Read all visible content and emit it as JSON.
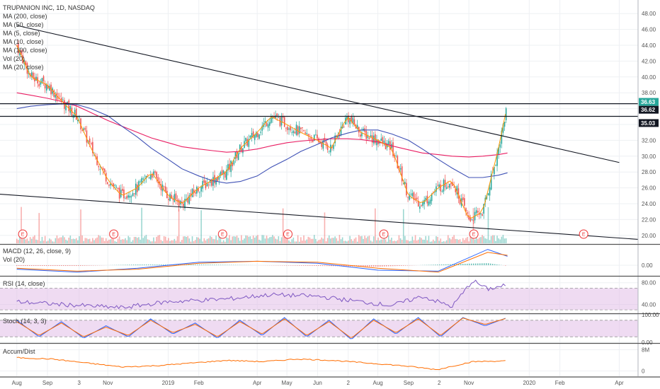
{
  "chart_data": [
    {
      "type": "line",
      "title": "TRUPANION INC, 1D, NASDAQ",
      "pane": "price",
      "ylim": [
        19,
        49
      ],
      "yticks": [
        48,
        46,
        44,
        42,
        40,
        38,
        36,
        34,
        32,
        30,
        28,
        26,
        24,
        22,
        20
      ],
      "legend": [
        "MA (200, close)",
        "MA (50, close)",
        "MA (5, close)",
        "MA (10, close)",
        "MA (100, close)",
        "Vol (20)",
        "MA (20, close)"
      ],
      "x": [
        "2018-08-01",
        "2018-08-15",
        "2018-09-01",
        "2018-09-15",
        "2018-10-01",
        "2018-10-15",
        "2018-11-01",
        "2018-11-15",
        "2018-12-01",
        "2018-12-15",
        "2019-01-01",
        "2019-01-15",
        "2019-02-01",
        "2019-02-15",
        "2019-03-01",
        "2019-03-15",
        "2019-04-01",
        "2019-04-15",
        "2019-05-01",
        "2019-05-15",
        "2019-06-01",
        "2019-06-15",
        "2019-07-01",
        "2019-07-15",
        "2019-08-01",
        "2019-08-15",
        "2019-09-01",
        "2019-09-15",
        "2019-10-01",
        "2019-10-15",
        "2019-11-01",
        "2019-11-15",
        "2019-12-01",
        "2019-12-10"
      ],
      "series": [
        {
          "name": "close",
          "color": "#26a69a",
          "values": [
            44,
            40,
            39,
            37,
            35,
            31,
            27,
            25,
            26,
            28,
            25,
            24,
            26,
            27,
            28,
            31,
            33,
            35,
            34,
            33,
            32,
            31,
            35,
            33,
            32,
            31,
            25,
            24,
            26,
            27,
            22,
            23,
            31,
            36.6
          ]
        },
        {
          "name": "MA (200, close)",
          "color": "#e91e63",
          "values": [
            38,
            37.7,
            37.3,
            36.9,
            36.3,
            35.5,
            34.5,
            33.8,
            33.0,
            32.3,
            31.7,
            31.2,
            30.9,
            30.7,
            30.5,
            30.6,
            30.9,
            31.3,
            31.7,
            31.9,
            32.1,
            32.2,
            32.2,
            32.1,
            31.8,
            31.3,
            30.8,
            30.4,
            30.2,
            30.0,
            29.9,
            30.0,
            30.2,
            30.4
          ]
        },
        {
          "name": "MA (100, close)",
          "color": "#3f51b5",
          "values": [
            36,
            36.3,
            36.5,
            36.6,
            36.5,
            36.0,
            35.1,
            33.8,
            32.4,
            31.0,
            29.6,
            28.4,
            27.5,
            26.9,
            26.6,
            26.8,
            27.5,
            28.6,
            29.6,
            30.6,
            31.5,
            32.3,
            32.9,
            33.3,
            33.3,
            32.8,
            32.0,
            30.9,
            29.6,
            28.5,
            27.3,
            27.3,
            27.6,
            27.9
          ]
        }
      ],
      "horizontal_levels": [
        36.63,
        36.62,
        35.03
      ],
      "tags": [
        {
          "label": "36.63",
          "color": "#26a69a"
        },
        {
          "label": "36.62",
          "color": "#131722"
        },
        {
          "label": "35.03",
          "color": "#131722"
        }
      ],
      "trendlines": [
        {
          "from": [
            "2018-08-01",
            46.5
          ],
          "to": [
            "2020-04-01",
            29.2
          ]
        },
        {
          "from": [
            "2018-07-15",
            25.2
          ],
          "to": [
            "2020-04-20",
            19.5
          ]
        }
      ],
      "events": [
        {
          "x": "2018-08-07",
          "label": "E"
        },
        {
          "x": "2018-11-07",
          "label": "E"
        },
        {
          "x": "2019-02-25",
          "label": "E"
        },
        {
          "x": "2019-05-02",
          "label": "E"
        },
        {
          "x": "2019-08-07",
          "label": "E"
        },
        {
          "x": "2019-11-06",
          "label": "E"
        },
        {
          "x": "2020-02-25",
          "label": "E"
        }
      ]
    },
    {
      "type": "line",
      "pane": "macd",
      "title": "MACD (12, 26, close, 9)",
      "legend_extra": "Vol (20)",
      "ylim": [
        -1,
        2
      ],
      "yticks": [
        0.0
      ],
      "ytick_labels": [
        "0.00"
      ],
      "x": [
        "2018-08-01",
        "2018-10-01",
        "2018-12-01",
        "2019-02-01",
        "2019-04-01",
        "2019-06-01",
        "2019-08-01",
        "2019-10-01",
        "2019-11-20",
        "2019-12-10"
      ],
      "series": [
        {
          "name": "MACD",
          "color": "#2962ff",
          "values": [
            -0.4,
            -0.7,
            -0.3,
            0.3,
            0.4,
            0.2,
            -0.5,
            -0.6,
            1.6,
            0.9
          ]
        },
        {
          "name": "Signal",
          "color": "#ff6d00",
          "values": [
            -0.3,
            -0.6,
            -0.4,
            0.2,
            0.4,
            0.3,
            -0.3,
            -0.7,
            1.3,
            1.0
          ]
        }
      ]
    },
    {
      "type": "line",
      "pane": "rsi",
      "title": "RSI (14, close)",
      "ylim": [
        25,
        90
      ],
      "yticks": [
        80.0,
        40.0
      ],
      "ytick_labels": [
        "80.00",
        "40.00"
      ],
      "band": [
        30,
        70
      ],
      "x": [
        "2018-08-01",
        "2018-09-15",
        "2018-11-15",
        "2019-01-01",
        "2019-03-01",
        "2019-04-15",
        "2019-06-01",
        "2019-08-15",
        "2019-09-15",
        "2019-10-15",
        "2019-11-05",
        "2019-11-20",
        "2019-12-10"
      ],
      "series": [
        {
          "name": "RSI",
          "color": "#7e57c2",
          "values": [
            45,
            40,
            34,
            45,
            50,
            58,
            55,
            38,
            55,
            36,
            84,
            68,
            76
          ]
        }
      ]
    },
    {
      "type": "line",
      "pane": "stoch",
      "title": "Stoch (14, 3, 3)",
      "ylim": [
        0,
        100
      ],
      "yticks": [
        100.0,
        0.0
      ],
      "ytick_labels": [
        "100.00",
        "0.00"
      ],
      "band": [
        20,
        80
      ],
      "series": [
        {
          "name": "%K",
          "color": "#2962ff",
          "values": [
            80,
            20,
            75,
            15,
            60,
            20,
            85,
            30,
            70,
            15,
            80,
            25,
            90,
            20,
            80,
            10,
            85,
            30,
            90,
            20,
            90,
            60,
            90
          ]
        },
        {
          "name": "%D",
          "color": "#ff6d00",
          "values": [
            75,
            25,
            70,
            20,
            55,
            25,
            80,
            35,
            65,
            20,
            75,
            30,
            85,
            25,
            75,
            15,
            80,
            35,
            85,
            25,
            88,
            65,
            88
          ]
        }
      ]
    },
    {
      "type": "line",
      "pane": "accum",
      "title": "Accum/Dist",
      "yticks": [
        8,
        0
      ],
      "ytick_labels": [
        "8M",
        "0"
      ],
      "ylim": [
        -2,
        10
      ],
      "series": [
        {
          "name": "Accum/Dist",
          "color": "#ff6d00",
          "values": [
            5,
            4.5,
            3,
            1.5,
            2,
            3,
            4,
            3.5,
            4.5,
            4,
            3,
            2,
            0.5,
            3.5,
            3.8
          ]
        }
      ]
    }
  ],
  "time_axis": {
    "labels": [
      "Aug",
      "Sep",
      "3",
      "Nov",
      "2019",
      "Feb",
      "Apr",
      "May",
      "Jun",
      "2",
      "Aug",
      "Sep",
      "2",
      "Nov",
      "2020",
      "Feb",
      "Apr"
    ],
    "dates": [
      "2018-08-01",
      "2018-09-01",
      "2018-10-03",
      "2018-11-01",
      "2019-01-01",
      "2019-02-01",
      "2019-04-01",
      "2019-05-01",
      "2019-06-01",
      "2019-07-02",
      "2019-08-01",
      "2019-09-01",
      "2019-10-02",
      "2019-11-01",
      "2020-01-01",
      "2020-02-01",
      "2020-04-01"
    ]
  },
  "colors": {
    "up": "#26a69a",
    "down": "#ef5350",
    "grid": "#eef0f3",
    "band": "#e1bee7",
    "axis_text": "#555555"
  }
}
